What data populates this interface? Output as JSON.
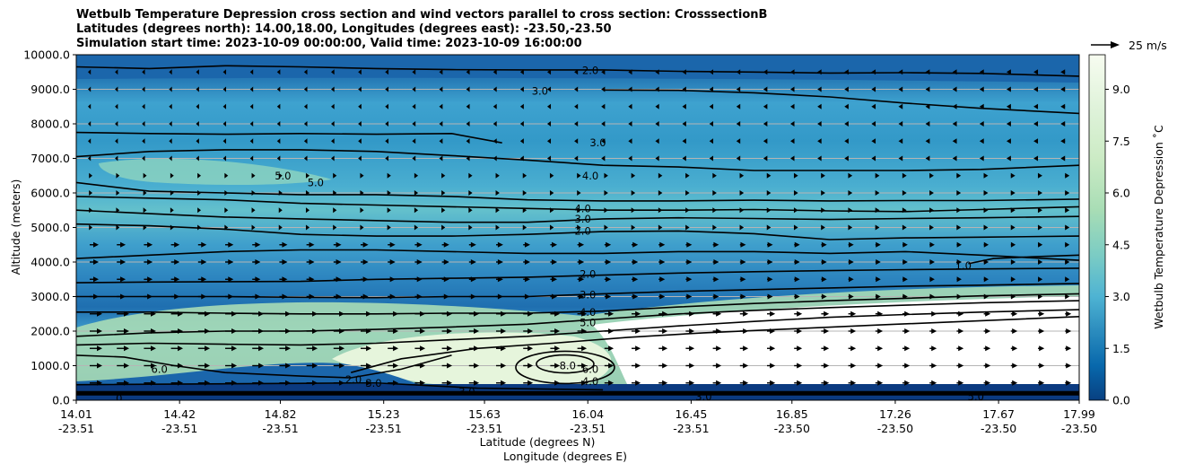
{
  "chart_data": {
    "type": "contour",
    "title_lines": [
      "Wetbulb Temperature Depression cross section and wind vectors parallel to cross section: CrosssectionB",
      "Latitudes (degrees north): 14.00,18.00, Longitudes (degrees east): -23.50,-23.50",
      "Simulation start time: 2023-10-09 00:00:00, Valid time: 2023-10-09 16:00:00"
    ],
    "ylabel": "Altitude (meters)",
    "xlabel_lat": "Latitude (degrees N)",
    "xlabel_lon": "Longitude (degrees E)",
    "ylim": [
      0,
      10000
    ],
    "y_ticks": [
      "0.0",
      "1000.0",
      "2000.0",
      "3000.0",
      "4000.0",
      "5000.0",
      "6000.0",
      "7000.0",
      "8000.0",
      "9000.0",
      "10000.0"
    ],
    "x_ticks_lat": [
      "14.01",
      "14.42",
      "14.82",
      "15.23",
      "15.63",
      "16.04",
      "16.45",
      "16.85",
      "17.26",
      "17.67",
      "17.99"
    ],
    "x_ticks_lon": [
      "-23.51",
      "-23.51",
      "-23.51",
      "-23.51",
      "-23.51",
      "-23.51",
      "-23.51",
      "-23.50",
      "-23.50",
      "-23.50",
      "-23.50"
    ],
    "colorbar_label": "Wetbulb Temperature Depression ˚C",
    "colorbar_ticks": [
      "0.0",
      "1.5",
      "3.0",
      "4.5",
      "6.0",
      "7.5",
      "9.0"
    ],
    "colorbar_range": [
      0,
      10
    ],
    "colormap": "GnBu_r",
    "quiver_key_label": "25 m/s",
    "contour_labels": [
      {
        "text": "2.0",
        "lat": 16.05,
        "alt": 9550
      },
      {
        "text": "3.0",
        "lat": 15.85,
        "alt": 8950
      },
      {
        "text": "3.0",
        "lat": 16.08,
        "alt": 7450
      },
      {
        "text": "4.0",
        "lat": 16.05,
        "alt": 6500
      },
      {
        "text": "5.0",
        "lat": 14.83,
        "alt": 6500
      },
      {
        "text": "5.0",
        "lat": 14.96,
        "alt": 6300
      },
      {
        "text": "4.0",
        "lat": 16.02,
        "alt": 5550
      },
      {
        "text": "3.0",
        "lat": 16.02,
        "alt": 5250
      },
      {
        "text": "2.0",
        "lat": 16.02,
        "alt": 4900
      },
      {
        "text": "2.0",
        "lat": 16.04,
        "alt": 3650
      },
      {
        "text": "3.0",
        "lat": 16.04,
        "alt": 3050
      },
      {
        "text": "4.0",
        "lat": 16.04,
        "alt": 2550
      },
      {
        "text": "5.0",
        "lat": 16.04,
        "alt": 2250
      },
      {
        "text": "1.0",
        "lat": 17.53,
        "alt": 3900
      },
      {
        "text": "6.0",
        "lat": 14.34,
        "alt": 900
      },
      {
        "text": "2.0",
        "lat": 15.11,
        "alt": 600
      },
      {
        "text": "3.0",
        "lat": 15.19,
        "alt": 500
      },
      {
        "text": "3.0",
        "lat": 15.56,
        "alt": 250
      },
      {
        "text": "8.0",
        "lat": 15.96,
        "alt": 1000
      },
      {
        "text": "6.0",
        "lat": 16.05,
        "alt": 900
      },
      {
        "text": "4.0",
        "lat": 16.05,
        "alt": 550
      },
      {
        "text": "3.0",
        "lat": 16.5,
        "alt": 100
      },
      {
        "text": "5.0",
        "lat": 17.58,
        "alt": 100
      },
      {
        "text": "0",
        "lat": 14.18,
        "alt": 50
      }
    ],
    "contour_levels": [
      {
        "level": 2.0,
        "lat": [
          14.01,
          14.3,
          14.6,
          14.9,
          15.2,
          15.5,
          15.8,
          16.1,
          16.4,
          16.7,
          17.0,
          17.3,
          17.6,
          17.99
        ],
        "alt": [
          9650,
          9600,
          9680,
          9650,
          9600,
          9570,
          9560,
          9560,
          9520,
          9500,
          9470,
          9480,
          9460,
          9380
        ]
      },
      {
        "level": 3.0,
        "lat": [
          16.1,
          16.4,
          16.7,
          17.0,
          17.3,
          17.6,
          17.99
        ],
        "alt": [
          8980,
          8970,
          8900,
          8780,
          8600,
          8450,
          8300
        ]
      },
      {
        "level": 3.0,
        "lat": [
          14.01,
          14.3,
          14.6,
          14.9,
          15.2,
          15.5,
          15.7
        ],
        "alt": [
          7750,
          7720,
          7700,
          7720,
          7700,
          7720,
          7450
        ]
      },
      {
        "level": 4.0,
        "lat": [
          14.01,
          14.3,
          14.6,
          14.9,
          15.2,
          15.5,
          15.8,
          16.1,
          16.4,
          16.7,
          17.0,
          17.3,
          17.6,
          17.99
        ],
        "alt": [
          7050,
          7200,
          7250,
          7250,
          7200,
          7080,
          6950,
          6800,
          6750,
          6650,
          6650,
          6650,
          6680,
          6800
        ]
      },
      {
        "level": 5.0,
        "lat": [
          14.01,
          14.3,
          14.6,
          14.9,
          15.2,
          15.5,
          15.8,
          16.1,
          16.4,
          16.7,
          17.0,
          17.3,
          17.6,
          17.99
        ],
        "alt": [
          6300,
          6050,
          6000,
          5950,
          5950,
          5900,
          5800,
          5770,
          5770,
          5790,
          5770,
          5780,
          5780,
          5820
        ]
      },
      {
        "level": 4.0,
        "lat": [
          14.01,
          14.3,
          14.6,
          14.9,
          15.2,
          15.5,
          15.8,
          16.1,
          16.4,
          16.7,
          17.0,
          17.3,
          17.6,
          17.99
        ],
        "alt": [
          5900,
          5850,
          5800,
          5700,
          5650,
          5600,
          5550,
          5500,
          5500,
          5520,
          5480,
          5460,
          5520,
          5600
        ]
      },
      {
        "level": 3.0,
        "lat": [
          14.01,
          14.3,
          14.6,
          14.9,
          15.2,
          15.5,
          15.8,
          16.1,
          16.4,
          16.7,
          17.0,
          17.3,
          17.6,
          17.99
        ],
        "alt": [
          5500,
          5400,
          5300,
          5250,
          5200,
          5150,
          5150,
          5250,
          5280,
          5260,
          5230,
          5260,
          5280,
          5320
        ]
      },
      {
        "level": 2.0,
        "lat": [
          14.01,
          14.3,
          14.6,
          14.9,
          15.2,
          15.5,
          15.8,
          16.1,
          16.4,
          16.7,
          17.0,
          17.3,
          17.6,
          17.99
        ],
        "alt": [
          5100,
          5050,
          4950,
          4800,
          4750,
          4750,
          4800,
          4880,
          4900,
          4820,
          4650,
          4700,
          4720,
          4750
        ]
      },
      {
        "level": 1.0,
        "lat": [
          14.01,
          14.3,
          14.6,
          14.9,
          15.2,
          15.5,
          15.8,
          16.1,
          16.4,
          16.7,
          17.0,
          17.3,
          17.6,
          17.99
        ],
        "alt": [
          4100,
          4200,
          4300,
          4350,
          4350,
          4300,
          4250,
          4250,
          4300,
          4300,
          4250,
          4300,
          4200,
          4050
        ]
      },
      {
        "level": 1.0,
        "lat": [
          17.55,
          17.65,
          17.8,
          17.99
        ],
        "alt": [
          3950,
          4100,
          4150,
          4200
        ]
      },
      {
        "level": 2.0,
        "lat": [
          14.01,
          14.3,
          14.6,
          14.9,
          15.2,
          15.5,
          15.8,
          16.1,
          16.4,
          16.7,
          17.0,
          17.3,
          17.6,
          17.99
        ],
        "alt": [
          3400,
          3420,
          3430,
          3440,
          3500,
          3530,
          3560,
          3620,
          3680,
          3720,
          3750,
          3780,
          3800,
          3820
        ]
      },
      {
        "level": 3.0,
        "lat": [
          14.01,
          14.3,
          14.6,
          14.9,
          15.2,
          15.5,
          15.8,
          16.1,
          16.4,
          16.7,
          17.0,
          17.3,
          17.6,
          17.99
        ],
        "alt": [
          3000,
          3000,
          3000,
          2980,
          2970,
          3000,
          3000,
          3080,
          3150,
          3200,
          3250,
          3300,
          3330,
          3380
        ]
      },
      {
        "level": 4.0,
        "lat": [
          14.01,
          14.3,
          14.6,
          14.9,
          15.2,
          15.5,
          15.8,
          16.1,
          16.4,
          16.7,
          17.0,
          17.3,
          17.6,
          17.99
        ],
        "alt": [
          2550,
          2550,
          2520,
          2500,
          2500,
          2520,
          2520,
          2580,
          2700,
          2800,
          2880,
          2950,
          3020,
          3080
        ]
      },
      {
        "level": 5.0,
        "lat": [
          14.01,
          14.3,
          14.6,
          14.9,
          15.2,
          15.5,
          15.8,
          16.1,
          16.4,
          16.7,
          17.0,
          17.3,
          17.6,
          17.99
        ],
        "alt": [
          1850,
          1950,
          2000,
          2000,
          2050,
          2120,
          2200,
          2350,
          2500,
          2600,
          2680,
          2750,
          2820,
          2880
        ]
      },
      {
        "level": 6.0,
        "lat": [
          14.01,
          14.3,
          14.6,
          14.9,
          15.2,
          15.5,
          15.8,
          16.1,
          16.4,
          16.7,
          17.0,
          17.3,
          17.6,
          17.99
        ],
        "alt": [
          1600,
          1650,
          1620,
          1600,
          1650,
          1750,
          1850,
          2000,
          2150,
          2280,
          2400,
          2480,
          2550,
          2620
        ]
      },
      {
        "level": 6.0,
        "lat": [
          14.01,
          14.2,
          14.4,
          14.6,
          14.9,
          15.1,
          15.3,
          15.5
        ],
        "alt": [
          1300,
          1250,
          1000,
          800,
          700,
          650,
          900,
          1300
        ]
      },
      {
        "level": 7.0,
        "lat": [
          15.1,
          15.3,
          15.6,
          15.9,
          16.2,
          16.5,
          16.8,
          17.2,
          17.6,
          17.99
        ],
        "alt": [
          800,
          1200,
          1500,
          1650,
          1820,
          1950,
          2050,
          2180,
          2300,
          2420
        ]
      }
    ]
  }
}
